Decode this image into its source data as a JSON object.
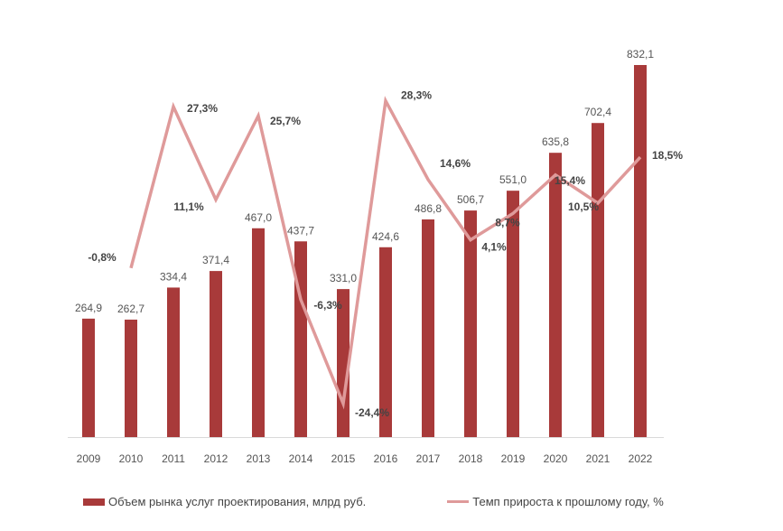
{
  "chart_data": {
    "type": "bar+line",
    "title": "",
    "categories": [
      "2009",
      "2010",
      "2011",
      "2012",
      "2013",
      "2014",
      "2015",
      "2016",
      "2017",
      "2018",
      "2019",
      "2020",
      "2021",
      "2022"
    ],
    "series": [
      {
        "name": "Объем рынка услуг проектирования, млрд руб.",
        "type": "bar",
        "color": "#a83a3a",
        "values": [
          264.9,
          262.7,
          334.4,
          371.4,
          467.0,
          437.7,
          331.0,
          424.6,
          486.8,
          506.7,
          551.0,
          635.8,
          702.4,
          832.1
        ],
        "labels": [
          "264,9",
          "262,7",
          "334,4",
          "371,4",
          "467,0",
          "437,7",
          "331,0",
          "424,6",
          "486,8",
          "506,7",
          "551,0",
          "635,8",
          "702,4",
          "832,1"
        ]
      },
      {
        "name": "Темп прироста к прошлому году, %",
        "type": "line",
        "color": "#df9a9a",
        "values": [
          null,
          -0.8,
          27.3,
          11.1,
          25.7,
          -6.3,
          -24.4,
          28.3,
          14.6,
          4.1,
          8.7,
          15.4,
          10.5,
          18.5
        ],
        "labels": [
          "",
          "-0,8%",
          "27,3%",
          "11,1%",
          "25,7%",
          "-6,3%",
          "-24,4%",
          "28,3%",
          "14,6%",
          "4,1%",
          "8,7%",
          "15,4%",
          "10,5%",
          "18,5%"
        ]
      }
    ],
    "ylim_bar": [
      0,
      832.1
    ],
    "ylim_line": [
      -24.4,
      27.3
    ],
    "legend_position": "bottom",
    "grid": false
  }
}
